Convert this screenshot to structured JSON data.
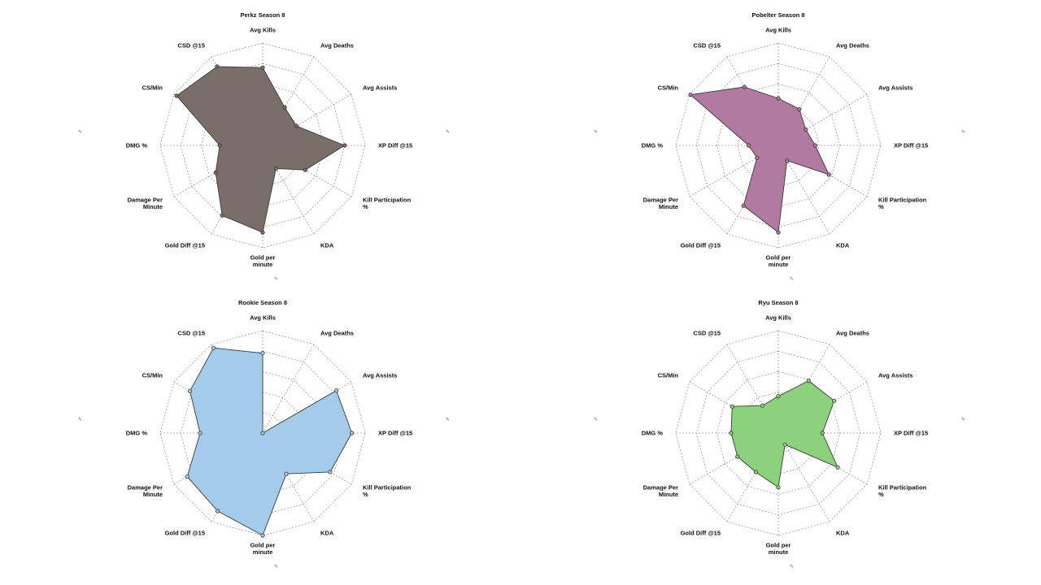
{
  "axes": [
    "Avg Kills",
    "Avg Deaths",
    "Avg Assists",
    "XP Diff @15",
    "Kill Participation %",
    "KDA",
    "Gold per minute",
    "Gold Diff @15",
    "Damage Per Minute",
    "DMG %",
    "CS/Min",
    "CSD @15"
  ],
  "chart_data": [
    {
      "type": "radar",
      "title": "Perkz Season 8",
      "color": "#7a6e6b",
      "scale": [
        0,
        1
      ],
      "grid": true,
      "values": [
        0.76,
        0.43,
        0.38,
        0.8,
        0.48,
        0.26,
        0.85,
        0.79,
        0.53,
        0.42,
        0.97,
        0.89
      ]
    },
    {
      "type": "radar",
      "title": "Pobelter Season 8",
      "color": "#b07aa1",
      "scale": [
        0,
        1
      ],
      "grid": true,
      "values": [
        0.46,
        0.41,
        0.31,
        0.36,
        0.57,
        0.17,
        0.85,
        0.68,
        0.24,
        0.29,
        0.99,
        0.66
      ]
    },
    {
      "type": "radar",
      "title": "Rookie Season 8",
      "color": "#a5cbeb",
      "scale": [
        0,
        1
      ],
      "grid": true,
      "values": [
        0.78,
        0.0,
        0.83,
        0.87,
        0.76,
        0.46,
        1.0,
        0.88,
        0.85,
        0.61,
        0.82,
        0.96
      ]
    },
    {
      "type": "radar",
      "title": "Ryu Season 8",
      "color": "#8cd17d",
      "scale": [
        0,
        1
      ],
      "grid": true,
      "values": [
        0.36,
        0.59,
        0.63,
        0.43,
        0.67,
        0.13,
        0.53,
        0.44,
        0.46,
        0.46,
        0.52,
        0.31
      ]
    }
  ]
}
